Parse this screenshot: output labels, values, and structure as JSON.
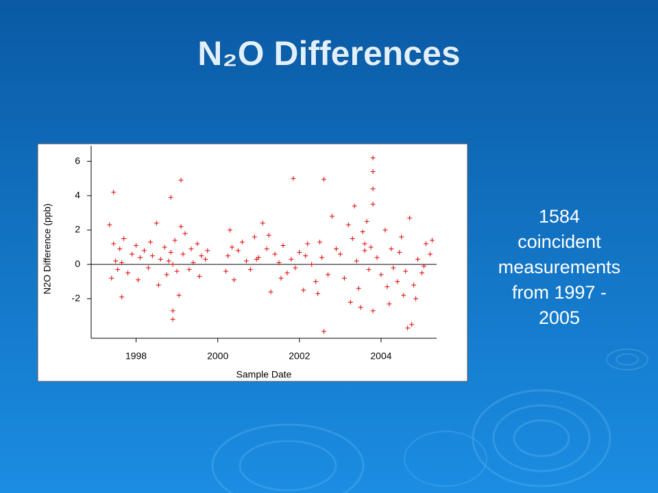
{
  "title": "N₂O Differences",
  "side_text": [
    "1584",
    "coincident",
    "measurements",
    "from 1997 -",
    "2005"
  ],
  "chart_data": {
    "type": "scatter",
    "xlabel": "Sample Date",
    "ylabel": "N2O Difference (ppb)",
    "xlim": [
      1996.9,
      2005.36
    ],
    "ylim": [
      -4.3,
      6.9
    ],
    "xticks": [
      1998,
      2000,
      2002,
      2004
    ],
    "yticks": [
      6,
      4,
      2,
      0,
      -2
    ],
    "hlines": [
      0
    ],
    "grid": false,
    "series": [
      {
        "color": "#e00000",
        "x": [
          1997.35,
          1997.4,
          1997.45,
          1997.5,
          1997.55,
          1997.6,
          1997.65,
          1997.7,
          1997.8,
          1997.9,
          1998.0,
          1998.05,
          1998.1,
          1998.2,
          1998.3,
          1998.35,
          1998.4,
          1998.5,
          1998.55,
          1998.6,
          1998.7,
          1998.75,
          1998.8,
          1998.85,
          1998.9,
          1998.9,
          1998.95,
          1999.0,
          1999.05,
          1999.1,
          1999.15,
          1999.2,
          1999.3,
          1999.35,
          1999.4,
          1999.5,
          1999.55,
          1999.6,
          1999.7,
          1999.75,
          1997.45,
          1997.65,
          1998.85,
          1999.1,
          1998.9,
          2000.2,
          2000.25,
          2000.3,
          2000.4,
          2000.5,
          2000.6,
          2000.7,
          2000.8,
          2000.9,
          2001.0,
          2001.1,
          2001.2,
          2001.3,
          2001.4,
          2001.5,
          2001.6,
          2001.7,
          2001.8,
          2001.85,
          2001.9,
          2002.0,
          2002.1,
          2002.2,
          2002.3,
          2002.4,
          2002.5,
          2002.55,
          2002.6,
          2002.6,
          2002.7,
          2002.8,
          2002.9,
          2000.35,
          2000.95,
          2001.25,
          2001.55,
          2002.15,
          2002.45,
          2003.0,
          2003.1,
          2003.2,
          2003.3,
          2003.35,
          2003.4,
          2003.45,
          2003.5,
          2003.55,
          2003.6,
          2003.65,
          2003.7,
          2003.75,
          2003.8,
          2003.8,
          2003.8,
          2003.8,
          2003.8,
          2003.9,
          2004.0,
          2004.1,
          2004.2,
          2004.25,
          2004.3,
          2004.4,
          2004.5,
          2004.55,
          2004.6,
          2004.65,
          2004.7,
          2004.75,
          2004.8,
          2004.9,
          2005.0,
          2005.1,
          2005.2,
          2005.25,
          2003.25,
          2003.6,
          2004.15,
          2004.45,
          2004.85,
          2005.05
        ],
        "values": [
          2.3,
          -0.8,
          1.2,
          0.2,
          -0.3,
          0.9,
          0.1,
          1.5,
          -0.5,
          0.6,
          1.1,
          -0.9,
          0.4,
          0.8,
          -0.2,
          1.3,
          0.5,
          2.4,
          -1.2,
          0.3,
          1.0,
          -0.6,
          0.2,
          0.7,
          -2.7,
          -3.2,
          1.4,
          -0.4,
          -1.8,
          2.2,
          0.6,
          1.8,
          -0.3,
          0.9,
          0.1,
          1.2,
          -0.7,
          0.5,
          0.3,
          0.8,
          4.2,
          -1.9,
          3.9,
          4.9,
          0.0,
          -0.4,
          0.5,
          2.0,
          -0.9,
          0.8,
          1.3,
          0.2,
          -0.3,
          1.6,
          0.4,
          2.4,
          0.9,
          -1.6,
          0.6,
          0.1,
          1.1,
          -0.5,
          0.3,
          5.0,
          -0.2,
          0.7,
          -1.5,
          1.2,
          0.0,
          -1.0,
          1.3,
          0.4,
          4.95,
          -3.9,
          -0.6,
          2.8,
          0.9,
          1.0,
          0.3,
          1.7,
          -0.8,
          0.5,
          -1.7,
          0.6,
          -0.8,
          2.3,
          1.5,
          3.4,
          0.2,
          -1.4,
          -2.5,
          1.9,
          0.8,
          2.5,
          -0.3,
          1.0,
          6.2,
          5.4,
          4.4,
          3.5,
          -2.7,
          0.4,
          -0.6,
          2.0,
          -2.3,
          0.9,
          -0.2,
          -1.0,
          1.6,
          -1.8,
          -0.4,
          -3.7,
          2.7,
          -3.5,
          -1.2,
          0.3,
          -0.5,
          1.2,
          0.6,
          1.4,
          -2.2,
          1.2,
          -1.3,
          0.7,
          -2.0,
          -0.1
        ]
      }
    ]
  }
}
